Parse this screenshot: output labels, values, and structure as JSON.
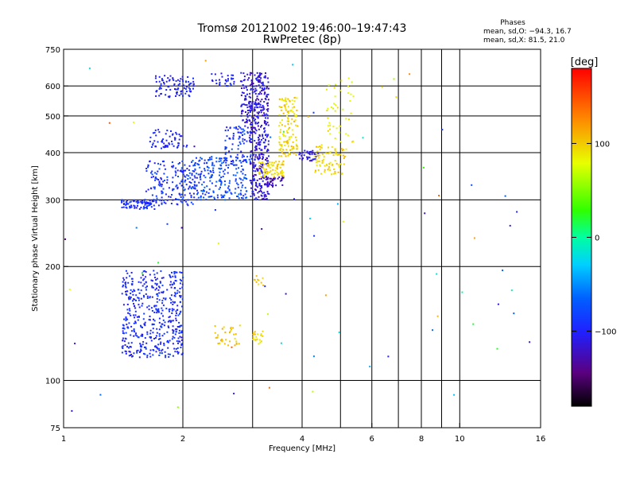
{
  "header": {
    "title_line1": "Tromsø 20121002 19:46:00–19:47:43",
    "title_line2": "RwPretec (8p)",
    "phases": {
      "heading": "Phases",
      "line_o": "mean, sd,O: −94.3, 16.7",
      "line_x": "mean, sd,X:  81.5, 21.0"
    }
  },
  "colorbar": {
    "unit_label": "[deg]",
    "range": [
      -180,
      180
    ],
    "ticks": [
      {
        "value": 100,
        "label": "100"
      },
      {
        "value": 0,
        "label": "0"
      },
      {
        "value": -100,
        "label": "−100"
      }
    ]
  },
  "chart_data": {
    "type": "scatter",
    "xlabel": "Frequency [MHz]",
    "ylabel": "Stationary phase Virtual Height [km]",
    "xscale": "log",
    "yscale": "log",
    "xlim": [
      1,
      16
    ],
    "ylim": [
      75,
      750
    ],
    "x_ticks": [
      {
        "value": 1,
        "label": "1"
      },
      {
        "value": 2,
        "label": "2"
      },
      {
        "value": 4,
        "label": "4"
      },
      {
        "value": 6,
        "label": "6"
      },
      {
        "value": 8,
        "label": "8"
      },
      {
        "value": 10,
        "label": "10"
      },
      {
        "value": 16,
        "label": "16"
      }
    ],
    "x_grid": [
      2,
      3,
      4,
      5,
      6,
      7,
      8,
      9,
      10
    ],
    "y_ticks": [
      {
        "value": 75,
        "label": "75"
      },
      {
        "value": 100,
        "label": "100"
      },
      {
        "value": 200,
        "label": "200"
      },
      {
        "value": 300,
        "label": "300"
      },
      {
        "value": 400,
        "label": "400"
      },
      {
        "value": 500,
        "label": "500"
      },
      {
        "value": 600,
        "label": "600"
      },
      {
        "value": 750,
        "label": "750"
      }
    ],
    "y_grid": [
      100,
      200,
      300,
      400,
      500,
      600
    ],
    "color_by": "phase (deg)",
    "clusters": [
      {
        "f": [
          1.4,
          2.0
        ],
        "h": [
          115,
          195
        ],
        "phase": [
          -110,
          -80
        ],
        "n": 480
      },
      {
        "f": [
          1.4,
          1.75
        ],
        "h": [
          283,
          300
        ],
        "phase": [
          -110,
          -80
        ],
        "n": 80
      },
      {
        "f": [
          1.6,
          2.15
        ],
        "h": [
          290,
          380
        ],
        "phase": [
          -110,
          -70
        ],
        "n": 180
      },
      {
        "f": [
          1.65,
          2.05
        ],
        "h": [
          410,
          460
        ],
        "phase": [
          -110,
          -90
        ],
        "n": 60
      },
      {
        "f": [
          1.7,
          2.15
        ],
        "h": [
          560,
          640
        ],
        "phase": [
          -110,
          -90
        ],
        "n": 90
      },
      {
        "f": [
          2.1,
          2.9
        ],
        "h": [
          300,
          390
        ],
        "phase": [
          -100,
          -60
        ],
        "n": 220
      },
      {
        "f": [
          2.55,
          3.0
        ],
        "h": [
          370,
          470
        ],
        "phase": [
          -110,
          -70
        ],
        "n": 90
      },
      {
        "f": [
          2.35,
          2.7
        ],
        "h": [
          600,
          650
        ],
        "phase": [
          -110,
          -90
        ],
        "n": 30
      },
      {
        "f": [
          2.95,
          3.3
        ],
        "h": [
          300,
          650
        ],
        "phase": [
          -130,
          -95
        ],
        "n": 400
      },
      {
        "f": [
          2.8,
          2.95
        ],
        "h": [
          480,
          650
        ],
        "phase": [
          -120,
          -100
        ],
        "n": 60
      },
      {
        "f": [
          3.2,
          3.6
        ],
        "h": [
          325,
          345
        ],
        "phase": [
          -140,
          -110
        ],
        "n": 40
      },
      {
        "f": [
          3.1,
          3.6
        ],
        "h": [
          345,
          380
        ],
        "phase": [
          80,
          110
        ],
        "n": 70
      },
      {
        "f": [
          3.5,
          3.9
        ],
        "h": [
          390,
          560
        ],
        "phase": [
          80,
          110
        ],
        "n": 130
      },
      {
        "f": [
          3.9,
          4.4
        ],
        "h": [
          380,
          405
        ],
        "phase": [
          -120,
          -100
        ],
        "n": 40
      },
      {
        "f": [
          4.3,
          5.2
        ],
        "h": [
          350,
          420
        ],
        "phase": [
          85,
          110
        ],
        "n": 80
      },
      {
        "f": [
          4.6,
          5.4
        ],
        "h": [
          420,
          640
        ],
        "phase": [
          70,
          100
        ],
        "n": 45
      },
      {
        "f": [
          2.4,
          2.8
        ],
        "h": [
          123,
          140
        ],
        "phase": [
          90,
          115
        ],
        "n": 35
      },
      {
        "f": [
          3.0,
          3.2
        ],
        "h": [
          123,
          135
        ],
        "phase": [
          85,
          110
        ],
        "n": 20
      },
      {
        "f": [
          3.0,
          3.2
        ],
        "h": [
          178,
          190
        ],
        "phase": [
          90,
          110
        ],
        "n": 10
      },
      {
        "f": [
          1.0,
          16.0
        ],
        "h": [
          80,
          700
        ],
        "phase": [
          -150,
          150
        ],
        "n": 70
      }
    ]
  }
}
